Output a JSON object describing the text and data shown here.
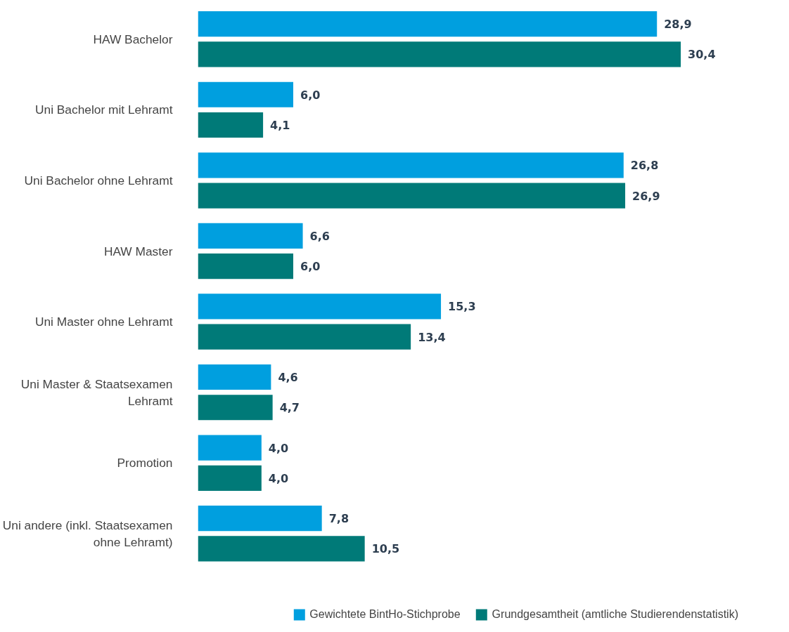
{
  "chart_data": {
    "type": "bar",
    "orientation": "horizontal",
    "categories": [
      "HAW Bachelor",
      "Uni Bachelor mit Lehramt",
      "Uni Bachelor ohne Lehramt",
      "HAW Master",
      "Uni Master ohne Lehramt",
      "Uni Master & Staatsexamen\nLehramt",
      "Promotion",
      "Uni andere (inkl. Staatsexamen\nohne Lehramt)"
    ],
    "series": [
      {
        "name": "Gewichtete BintHo-Stichprobe",
        "color": "#009fdf",
        "values": [
          28.9,
          6.0,
          26.8,
          6.6,
          15.3,
          4.6,
          4.0,
          7.8
        ],
        "value_labels": [
          "28,9",
          "6,0",
          "26,8",
          "6,6",
          "15,3",
          "4,6",
          "4,0",
          "7,8"
        ]
      },
      {
        "name": "Grundgesamtheit (amtliche Studierendenstatistik)",
        "color": "#007a78",
        "values": [
          30.4,
          4.1,
          26.9,
          6.0,
          13.4,
          4.7,
          4.0,
          10.5
        ],
        "value_labels": [
          "30,4",
          "4,1",
          "26,9",
          "6,0",
          "13,4",
          "4,7",
          "4,0",
          "10,5"
        ]
      }
    ],
    "tick_labels": "y",
    "grid": false,
    "legend": "bottom"
  }
}
